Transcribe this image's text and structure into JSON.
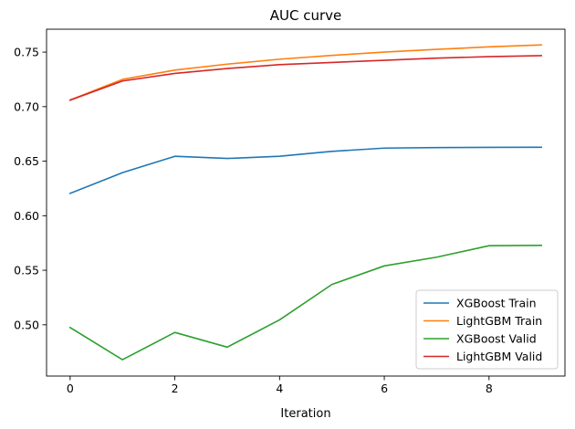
{
  "chart_data": {
    "type": "line",
    "title": "AUC curve",
    "xlabel": "Iteration",
    "ylabel": "",
    "x": [
      0,
      1,
      2,
      3,
      4,
      5,
      6,
      7,
      8,
      9
    ],
    "xlim": [
      -0.45,
      9.45
    ],
    "ylim": [
      0.453,
      0.771
    ],
    "xticks": [
      0,
      2,
      4,
      6,
      8
    ],
    "yticks": [
      0.5,
      0.55,
      0.6,
      0.65,
      0.7,
      0.75
    ],
    "ytick_labels": [
      "0.50",
      "0.55",
      "0.60",
      "0.65",
      "0.70",
      "0.75"
    ],
    "grid": false,
    "legend_position": "lower right",
    "series": [
      {
        "name": "XGBoost Train",
        "color": "#1f77b4",
        "values": [
          0.6205,
          0.6395,
          0.6545,
          0.6525,
          0.6545,
          0.659,
          0.662,
          0.6625,
          0.6627,
          0.6628
        ]
      },
      {
        "name": "LightGBM Train",
        "color": "#ff7f0e",
        "values": [
          0.706,
          0.725,
          0.7335,
          0.739,
          0.7435,
          0.747,
          0.75,
          0.7525,
          0.7548,
          0.7566
        ]
      },
      {
        "name": "XGBoost Valid",
        "color": "#2ca02c",
        "values": [
          0.4975,
          0.468,
          0.493,
          0.4795,
          0.5045,
          0.537,
          0.554,
          0.562,
          0.5725,
          0.5728
        ]
      },
      {
        "name": "LightGBM Valid",
        "color": "#d62728",
        "values": [
          0.706,
          0.7235,
          0.7305,
          0.735,
          0.7385,
          0.7405,
          0.7425,
          0.7445,
          0.7458,
          0.7468
        ]
      }
    ]
  }
}
